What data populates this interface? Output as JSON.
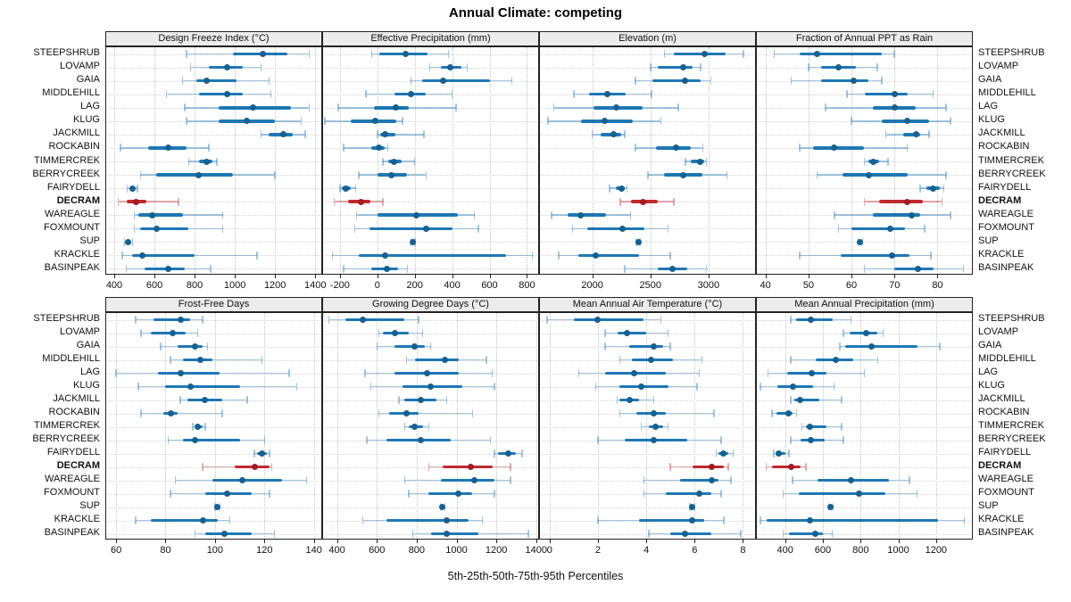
{
  "title": "Annual Climate: competing",
  "caption": "5th-25th-50th-75th-95th Percentiles",
  "highlight_site": "DECRAM",
  "sites": [
    "STEEPSHRUB",
    "LOVAMP",
    "GAIA",
    "MIDDLEHILL",
    "LAG",
    "KLUG",
    "JACKMILL",
    "ROCKABIN",
    "TIMMERCREK",
    "BERRYCREEK",
    "FAIRYDELL",
    "DECRAM",
    "WAREAGLE",
    "FOXMOUNT",
    "SUP",
    "KRACKLE",
    "BASINPEAK"
  ],
  "colors": {
    "blue_thick": "#1f77b4",
    "blue_dot": "#16618f",
    "blue_thin": "rgba(31,119,180,0.42)",
    "red_thick": "#bf2a2e",
    "red_dot": "#a01d22",
    "red_thin": "rgba(191,42,46,0.40)",
    "strip_bg": "#ececec",
    "grid": "#c3c3c3"
  },
  "chart_data": [
    {
      "type": "scatter",
      "variant": "percentile-dotplot",
      "row": 1,
      "title": "Design Freeze Index (°C)",
      "percentile_labels": [
        "5th",
        "25th",
        "50th",
        "75th",
        "95th"
      ],
      "xlim": [
        360,
        1430
      ],
      "ticks": [
        400,
        600,
        800,
        1000,
        1200,
        1400
      ],
      "values": [
        [
          760,
          990,
          1140,
          1260,
          1370
        ],
        [
          780,
          870,
          960,
          1040,
          1130
        ],
        [
          740,
          810,
          860,
          1010,
          1170
        ],
        [
          660,
          820,
          960,
          1040,
          1180
        ],
        [
          750,
          920,
          1090,
          1280,
          1370
        ],
        [
          760,
          920,
          1060,
          1200,
          1330
        ],
        [
          1130,
          1170,
          1240,
          1290,
          1350
        ],
        [
          430,
          570,
          670,
          760,
          870
        ],
        [
          770,
          820,
          860,
          890,
          910
        ],
        [
          530,
          610,
          820,
          990,
          1200
        ],
        [
          465,
          480,
          490,
          500,
          515
        ],
        [
          420,
          460,
          510,
          560,
          720
        ],
        [
          500,
          520,
          590,
          740,
          940
        ],
        [
          500,
          530,
          610,
          770,
          940
        ],
        [
          450,
          460,
          467,
          475,
          490
        ],
        [
          440,
          490,
          540,
          800,
          1110
        ],
        [
          460,
          550,
          670,
          750,
          880
        ]
      ]
    },
    {
      "type": "scatter",
      "variant": "percentile-dotplot",
      "row": 1,
      "title": "Effective Precipitation (mm)",
      "percentile_labels": [
        "5th",
        "25th",
        "50th",
        "75th",
        "95th"
      ],
      "xlim": [
        -290,
        860
      ],
      "ticks": [
        -200,
        0,
        200,
        400,
        600,
        800
      ],
      "values": [
        [
          -30,
          10,
          150,
          270,
          380
        ],
        [
          280,
          340,
          390,
          450,
          480
        ],
        [
          180,
          240,
          350,
          600,
          720
        ],
        [
          -60,
          90,
          180,
          260,
          400
        ],
        [
          -210,
          -20,
          100,
          170,
          420
        ],
        [
          -280,
          -140,
          -10,
          100,
          135
        ],
        [
          0,
          15,
          40,
          95,
          250
        ],
        [
          -180,
          -30,
          10,
          40,
          55
        ],
        [
          30,
          60,
          90,
          130,
          200
        ],
        [
          -100,
          0,
          75,
          160,
          260
        ],
        [
          -200,
          -190,
          -170,
          -140,
          -115
        ],
        [
          -230,
          -155,
          -85,
          -35,
          30
        ],
        [
          -110,
          0,
          210,
          430,
          520
        ],
        [
          -120,
          -40,
          260,
          400,
          540
        ],
        [
          180,
          185,
          190,
          196,
          202
        ],
        [
          -240,
          -100,
          40,
          690,
          830
        ],
        [
          -180,
          -30,
          50,
          110,
          160
        ]
      ]
    },
    {
      "type": "scatter",
      "variant": "percentile-dotplot",
      "row": 1,
      "title": "Elevation (m)",
      "percentile_labels": [
        "5th",
        "25th",
        "50th",
        "75th",
        "95th"
      ],
      "xlim": [
        1550,
        3400
      ],
      "ticks": [
        2000,
        2500,
        3000
      ],
      "values": [
        [
          2620,
          2700,
          2970,
          3150,
          3300
        ],
        [
          2500,
          2560,
          2780,
          2860,
          2930
        ],
        [
          2370,
          2520,
          2800,
          2930,
          3020
        ],
        [
          1840,
          1970,
          2130,
          2290,
          2510
        ],
        [
          1670,
          2010,
          2210,
          2430,
          2740
        ],
        [
          1620,
          1900,
          2110,
          2350,
          2590
        ],
        [
          2000,
          2070,
          2180,
          2250,
          2280
        ],
        [
          2370,
          2550,
          2720,
          2850,
          2950
        ],
        [
          2800,
          2850,
          2930,
          2960,
          2980
        ],
        [
          2480,
          2620,
          2780,
          2950,
          3160
        ],
        [
          2150,
          2200,
          2250,
          2280,
          2300
        ],
        [
          2240,
          2330,
          2440,
          2560,
          2700
        ],
        [
          1650,
          1790,
          1900,
          2120,
          2330
        ],
        [
          1830,
          1960,
          2260,
          2450,
          2650
        ],
        [
          2380,
          2388,
          2395,
          2402,
          2410
        ],
        [
          1710,
          1880,
          2030,
          2400,
          2670
        ],
        [
          2280,
          2560,
          2690,
          2820,
          2980
        ]
      ]
    },
    {
      "type": "scatter",
      "variant": "percentile-dotplot",
      "row": 1,
      "title": "Fraction of Annual PPT as Rain",
      "percentile_labels": [
        "5th",
        "25th",
        "50th",
        "75th",
        "95th"
      ],
      "xlim": [
        38,
        88
      ],
      "ticks": [
        40,
        50,
        60,
        70,
        80
      ],
      "values": [
        [
          42,
          48,
          52,
          67,
          70
        ],
        [
          50,
          53,
          57,
          61,
          66
        ],
        [
          46,
          53,
          60.5,
          64,
          67
        ],
        [
          59,
          63,
          70,
          73,
          79
        ],
        [
          54,
          65,
          70,
          75,
          82
        ],
        [
          60,
          67,
          73,
          78,
          83
        ],
        [
          68,
          72,
          75,
          76,
          78
        ],
        [
          48,
          51,
          56,
          63,
          73
        ],
        [
          63,
          64,
          65,
          66.5,
          68.5
        ],
        [
          52,
          58,
          64,
          73,
          82
        ],
        [
          76,
          77.5,
          79,
          80.5,
          81.5
        ],
        [
          63,
          66.5,
          73,
          76.5,
          81
        ],
        [
          56,
          65,
          74,
          76,
          83
        ],
        [
          57,
          60,
          69,
          72.5,
          77
        ],
        [
          61.5,
          61.8,
          62,
          62.3,
          62.6
        ],
        [
          48,
          57.5,
          69.5,
          73.5,
          78.5
        ],
        [
          63,
          70,
          75.5,
          79,
          86
        ]
      ]
    },
    {
      "type": "scatter",
      "variant": "percentile-dotplot",
      "row": 2,
      "title": "Frost-Free Days",
      "percentile_labels": [
        "5th",
        "25th",
        "50th",
        "75th",
        "95th"
      ],
      "xlim": [
        56,
        143
      ],
      "ticks": [
        60,
        80,
        100,
        120,
        140
      ],
      "values": [
        [
          68,
          75,
          86,
          90,
          95
        ],
        [
          70,
          74,
          83,
          88,
          93
        ],
        [
          78,
          85,
          92,
          95,
          97
        ],
        [
          82,
          87,
          94,
          99,
          119
        ],
        [
          60,
          77,
          86,
          102,
          130
        ],
        [
          69,
          80,
          90,
          110,
          133
        ],
        [
          86,
          89,
          96,
          103,
          113
        ],
        [
          70,
          79,
          82,
          85,
          103
        ],
        [
          91,
          92,
          93,
          95,
          96
        ],
        [
          81,
          87,
          92,
          110,
          120
        ],
        [
          116,
          117,
          119,
          121,
          122
        ],
        [
          95,
          108,
          116,
          122,
          123
        ],
        [
          84,
          99,
          111,
          127,
          137
        ],
        [
          82,
          96,
          105,
          115,
          122
        ],
        [
          100,
          100.5,
          101,
          101.5,
          102
        ],
        [
          68,
          74,
          95,
          101,
          106
        ],
        [
          92,
          96,
          104,
          115,
          124
        ]
      ]
    },
    {
      "type": "scatter",
      "variant": "percentile-dotplot",
      "row": 2,
      "title": "Growing Degree Days (°C)",
      "percentile_labels": [
        "5th",
        "25th",
        "50th",
        "75th",
        "95th"
      ],
      "xlim": [
        330,
        1410
      ],
      "ticks": [
        400,
        600,
        800,
        1000,
        1200,
        1400
      ],
      "values": [
        [
          360,
          440,
          530,
          740,
          810
        ],
        [
          610,
          630,
          690,
          760,
          830
        ],
        [
          600,
          690,
          790,
          840,
          870
        ],
        [
          750,
          790,
          940,
          1010,
          1150
        ],
        [
          540,
          690,
          850,
          1010,
          1180
        ],
        [
          570,
          730,
          870,
          1030,
          1190
        ],
        [
          710,
          740,
          820,
          900,
          950
        ],
        [
          610,
          660,
          750,
          810,
          1080
        ],
        [
          740,
          760,
          790,
          830,
          860
        ],
        [
          550,
          650,
          820,
          970,
          1170
        ],
        [
          1190,
          1210,
          1260,
          1300,
          1330
        ],
        [
          860,
          930,
          1070,
          1180,
          1270
        ],
        [
          740,
          920,
          1090,
          1190,
          1270
        ],
        [
          760,
          860,
          1010,
          1080,
          1190
        ],
        [
          920,
          925,
          930,
          936,
          942
        ],
        [
          530,
          650,
          950,
          1060,
          1130
        ],
        [
          780,
          870,
          950,
          1110,
          1360
        ]
      ]
    },
    {
      "type": "scatter",
      "variant": "percentile-dotplot",
      "row": 2,
      "title": "Mean Annual Air Temperature (°C)",
      "percentile_labels": [
        "5th",
        "25th",
        "50th",
        "75th",
        "95th"
      ],
      "xlim": [
        -0.4,
        8.5
      ],
      "ticks": [
        0,
        2,
        4,
        6,
        8
      ],
      "values": [
        [
          -0.1,
          1.0,
          2.0,
          3.9,
          4.6
        ],
        [
          2.3,
          2.8,
          3.2,
          4.0,
          4.9
        ],
        [
          2.3,
          3.3,
          4.3,
          4.7,
          5.0
        ],
        [
          2.9,
          3.4,
          4.2,
          5.1,
          6.3
        ],
        [
          1.2,
          2.3,
          3.5,
          4.8,
          6.2
        ],
        [
          1.9,
          2.9,
          3.8,
          4.9,
          6.1
        ],
        [
          2.8,
          2.9,
          3.3,
          3.7,
          4.3
        ],
        [
          2.9,
          3.6,
          4.3,
          4.8,
          6.8
        ],
        [
          3.8,
          4.1,
          4.4,
          4.7,
          4.9
        ],
        [
          2.0,
          3.1,
          4.3,
          5.7,
          7.1
        ],
        [
          6.9,
          7.0,
          7.2,
          7.4,
          7.6
        ],
        [
          5.0,
          5.9,
          6.7,
          7.2,
          7.4
        ],
        [
          3.9,
          5.4,
          6.7,
          7.0,
          7.5
        ],
        [
          3.9,
          4.8,
          6.2,
          6.7,
          7.1
        ],
        [
          5.8,
          5.85,
          5.9,
          5.95,
          6.0
        ],
        [
          2.0,
          3.7,
          5.9,
          6.4,
          7.2
        ],
        [
          4.1,
          5.0,
          5.6,
          6.7,
          7.9
        ]
      ]
    },
    {
      "type": "scatter",
      "variant": "percentile-dotplot",
      "row": 2,
      "title": "Mean Annual Precipitation (mm)",
      "percentile_labels": [
        "5th",
        "25th",
        "50th",
        "75th",
        "95th"
      ],
      "xlim": [
        250,
        1390
      ],
      "ticks": [
        400,
        600,
        800,
        1000,
        1200
      ],
      "values": [
        [
          430,
          460,
          535,
          650,
          750
        ],
        [
          710,
          740,
          830,
          890,
          920
        ],
        [
          690,
          720,
          860,
          1100,
          1220
        ],
        [
          430,
          560,
          670,
          760,
          890
        ],
        [
          310,
          410,
          540,
          620,
          820
        ],
        [
          270,
          360,
          440,
          550,
          660
        ],
        [
          430,
          450,
          480,
          580,
          700
        ],
        [
          330,
          355,
          420,
          440,
          460
        ],
        [
          490,
          510,
          530,
          620,
          700
        ],
        [
          430,
          480,
          535,
          610,
          710
        ],
        [
          340,
          350,
          365,
          400,
          420
        ],
        [
          300,
          330,
          430,
          480,
          510
        ],
        [
          440,
          570,
          750,
          950,
          1060
        ],
        [
          390,
          470,
          790,
          930,
          1100
        ],
        [
          630,
          636,
          642,
          648,
          654
        ],
        [
          270,
          300,
          530,
          1210,
          1350
        ],
        [
          390,
          420,
          560,
          600,
          650
        ]
      ]
    }
  ]
}
